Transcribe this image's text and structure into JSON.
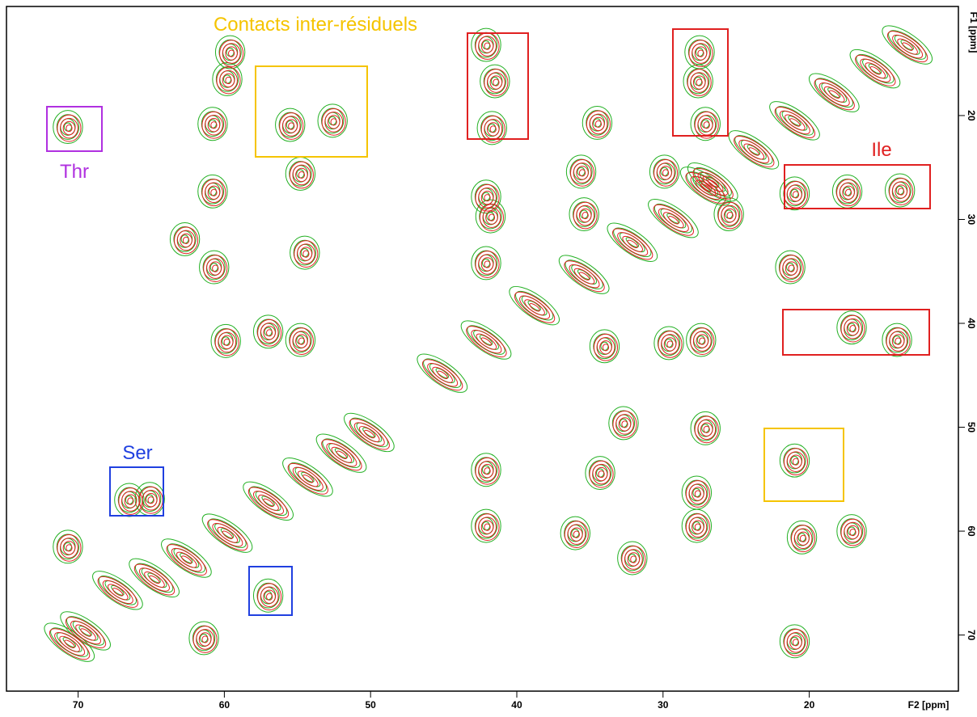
{
  "chart_data": {
    "type": "contour",
    "xlabel": "F2 [ppm]",
    "ylabel": "F1 [ppm]",
    "xlim": [
      74.9,
      9.8
    ],
    "ylim": [
      9.5,
      75.4
    ],
    "xticks": [
      70,
      60,
      50,
      40,
      30,
      20
    ],
    "yticks": [
      20,
      30,
      40,
      50,
      60,
      70
    ],
    "colors": [
      "#22b022",
      "#e02020"
    ],
    "peaks": {
      "x": [
        45.1,
        42.1,
        38.8,
        35.4,
        32.1,
        29.3,
        26.6,
        23.8,
        21.0,
        18.3,
        15.5,
        13.3,
        70.6,
        69.5,
        67.3,
        64.8,
        62.6,
        59.8,
        57.0,
        54.3,
        52.0,
        50.1,
        70.7,
        59.6,
        59.8,
        60.8,
        60.8,
        62.7,
        60.7,
        59.9,
        54.8,
        54.5,
        54.8,
        57.0,
        42.1,
        41.8,
        42.1,
        42.1,
        41.5,
        41.7,
        34.5,
        35.6,
        35.4,
        27.5,
        27.6,
        27.1,
        29.9,
        27.1,
        25.5,
        21.3,
        17.4,
        13.8,
        21.0,
        17.1,
        14.0,
        29.6,
        27.4,
        34.0,
        27.1,
        32.7,
        42.1,
        34.3,
        27.7,
        21.0,
        20.5,
        17.1,
        36.0,
        32.1,
        66.5,
        65.1,
        57.0,
        70.7,
        61.4,
        21.0,
        55.5,
        52.6,
        42.1,
        27.7
      ],
      "y": [
        44.8,
        41.6,
        38.3,
        35.3,
        32.2,
        29.9,
        26.4,
        23.3,
        20.5,
        17.8,
        15.5,
        13.2,
        70.7,
        69.6,
        65.7,
        64.5,
        62.6,
        60.2,
        57.1,
        54.8,
        52.5,
        50.5,
        21.1,
        13.9,
        16.5,
        20.8,
        27.3,
        31.9,
        34.6,
        41.7,
        25.6,
        33.2,
        41.6,
        40.8,
        27.8,
        29.7,
        34.2,
        13.2,
        16.7,
        21.2,
        20.7,
        25.4,
        29.5,
        13.9,
        16.7,
        20.8,
        25.4,
        26.8,
        29.5,
        34.6,
        27.3,
        27.2,
        27.5,
        40.4,
        41.6,
        41.9,
        41.6,
        42.2,
        50.1,
        49.6,
        54.1,
        54.4,
        56.3,
        53.2,
        60.6,
        60.0,
        60.2,
        62.6,
        57.0,
        56.9,
        66.2,
        61.5,
        70.3,
        70.6,
        20.9,
        20.5,
        59.5,
        59.5
      ]
    },
    "annotations": [
      {
        "text": "Contacts inter-résiduels",
        "color": "#f5c400"
      },
      {
        "text": "Thr",
        "color": "#b030e0"
      },
      {
        "text": "Ser",
        "color": "#2040e0"
      },
      {
        "text": "Ile",
        "color": "#e02020"
      }
    ]
  }
}
